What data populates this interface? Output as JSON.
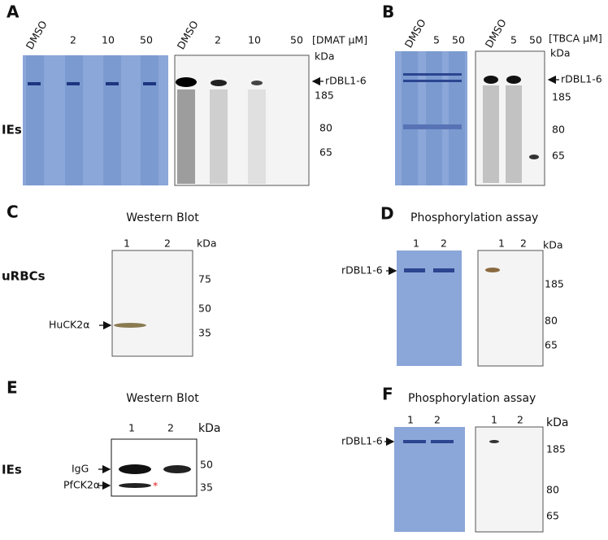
{
  "panel_a": {
    "letter": "A",
    "row_label": "IEs",
    "gel1_lanes": [
      "DMSO",
      "2",
      "10",
      "50"
    ],
    "gel2_lanes": [
      "DMSO",
      "2",
      "10",
      "50"
    ],
    "unit": "[DMAT µM]",
    "kda": "kDa",
    "protein": "rDBL1-6",
    "markers": [
      "185",
      "80",
      "65"
    ]
  },
  "panel_b": {
    "letter": "B",
    "gel1_lanes": [
      "DMSO",
      "5",
      "50"
    ],
    "gel2_lanes": [
      "DMSO",
      "5",
      "50"
    ],
    "unit": "[TBCA µM]",
    "kda": "kDa",
    "protein": "rDBL1-6",
    "markers": [
      "185",
      "80",
      "65"
    ]
  },
  "panel_c": {
    "letter": "C",
    "title": "Western Blot",
    "row_label": "uRBCs",
    "lanes": [
      "1",
      "2"
    ],
    "kda": "kDa",
    "markers": [
      "75",
      "50",
      "35"
    ],
    "protein": "HuCK2α"
  },
  "panel_d": {
    "letter": "D",
    "title": "Phosphorylation assay",
    "gel1_lanes": [
      "1",
      "2"
    ],
    "gel2_lanes": [
      "1",
      "2"
    ],
    "kda": "kDa",
    "protein": "rDBL1-6",
    "markers": [
      "185",
      "80",
      "65"
    ]
  },
  "panel_e": {
    "letter": "E",
    "title": "Western Blot",
    "row_label": "IEs",
    "lanes": [
      "1",
      "2"
    ],
    "kda": "kDa",
    "bands": [
      "IgG",
      "PfCK2α"
    ],
    "markers": [
      "50",
      "35"
    ],
    "asterisk": "*"
  },
  "panel_f": {
    "letter": "F",
    "title": "Phosphorylation assay",
    "gel1_lanes": [
      "1",
      "2"
    ],
    "gel2_lanes": [
      "1",
      "2"
    ],
    "kda": "kDa",
    "protein": "rDBL1-6",
    "markers": [
      "185",
      "80",
      "65"
    ]
  }
}
